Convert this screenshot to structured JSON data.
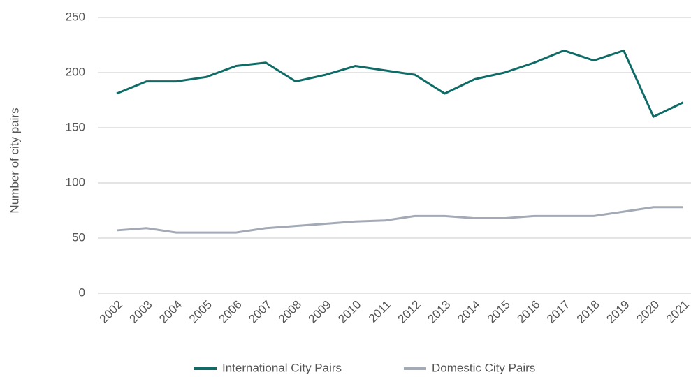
{
  "chart_data": {
    "type": "line",
    "y_label": "Number of city pairs",
    "categories": [
      "2002",
      "2003",
      "2004",
      "2005",
      "2006",
      "2007",
      "2008",
      "2009",
      "2010",
      "2011",
      "2012",
      "2013",
      "2014",
      "2015",
      "2016",
      "2017",
      "2018",
      "2019",
      "2020",
      "2021"
    ],
    "series": [
      {
        "name": "International City Pairs",
        "color": "#0e6b66",
        "values": [
          181,
          192,
          192,
          196,
          206,
          209,
          192,
          198,
          206,
          202,
          198,
          181,
          194,
          200,
          209,
          220,
          211,
          220,
          160,
          173
        ]
      },
      {
        "name": "Domestic City Pairs",
        "color": "#a3aab5",
        "values": [
          57,
          59,
          55,
          55,
          55,
          59,
          61,
          63,
          65,
          66,
          70,
          70,
          68,
          68,
          70,
          70,
          70,
          74,
          78,
          78
        ]
      }
    ],
    "ylim": [
      0,
      250
    ],
    "yticks": [
      0,
      50,
      100,
      150,
      200,
      250
    ],
    "grid": true,
    "legend": "bottom"
  }
}
